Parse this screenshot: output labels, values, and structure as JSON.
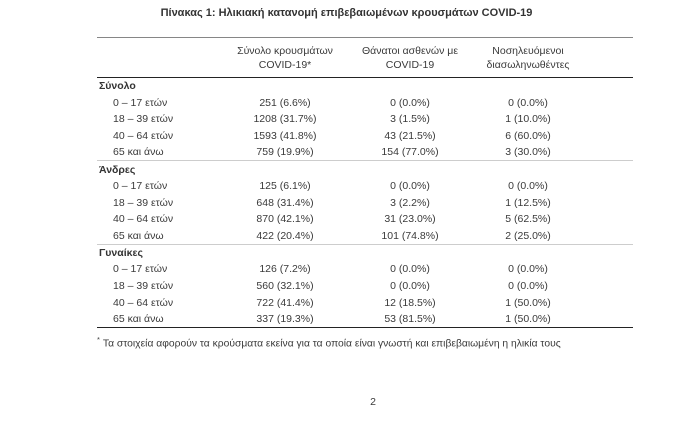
{
  "page": {
    "title": "Πίνακας 1: Ηλικιακή κατανομή επιβεβαιωμένων κρουσμάτων COVID-19",
    "footnote_marker": "*",
    "footnote_text": "Τα στοιχεία αφορούν τα κρούσματα εκείνα για τα οποία είναι γνωστή και επιβεβαιωμένη η ηλικία τους",
    "page_number": "2"
  },
  "colors": {
    "text": "#3a3a3a",
    "rule_top": "#868686",
    "rule_dark": "#232323",
    "rule_separator": "#cdcdcd",
    "background": "#ffffff"
  },
  "table": {
    "columns": [
      {
        "line1": "Σύνολο κρουσμάτων",
        "line2": "COVID-19*"
      },
      {
        "line1": "Θάνατοι ασθενών με",
        "line2": "COVID-19"
      },
      {
        "line1": "Νοσηλευόμενοι",
        "line2": "διασωληνωθέντες"
      }
    ],
    "sections": [
      {
        "label": "Σύνολο",
        "rows": [
          {
            "age": "0 – 17 ετών",
            "cases": "251 (6.6%)",
            "deaths": "0 (0.0%)",
            "intubated": "0 (0.0%)"
          },
          {
            "age": "18 – 39 ετών",
            "cases": "1208 (31.7%)",
            "deaths": "3 (1.5%)",
            "intubated": "1 (10.0%)"
          },
          {
            "age": "40 – 64 ετών",
            "cases": "1593 (41.8%)",
            "deaths": "43 (21.5%)",
            "intubated": "6 (60.0%)"
          },
          {
            "age": "65 και άνω",
            "cases": "759 (19.9%)",
            "deaths": "154 (77.0%)",
            "intubated": "3 (30.0%)"
          }
        ]
      },
      {
        "label": "Άνδρες",
        "rows": [
          {
            "age": "0 – 17 ετών",
            "cases": "125 (6.1%)",
            "deaths": "0 (0.0%)",
            "intubated": "0 (0.0%)"
          },
          {
            "age": "18 – 39 ετών",
            "cases": "648 (31.4%)",
            "deaths": "3 (2.2%)",
            "intubated": "1 (12.5%)"
          },
          {
            "age": "40 – 64 ετών",
            "cases": "870 (42.1%)",
            "deaths": "31 (23.0%)",
            "intubated": "5 (62.5%)"
          },
          {
            "age": "65 και άνω",
            "cases": "422 (20.4%)",
            "deaths": "101 (74.8%)",
            "intubated": "2 (25.0%)"
          }
        ]
      },
      {
        "label": "Γυναίκες",
        "rows": [
          {
            "age": "0 – 17 ετών",
            "cases": "126 (7.2%)",
            "deaths": "0 (0.0%)",
            "intubated": "0 (0.0%)"
          },
          {
            "age": "18 – 39 ετών",
            "cases": "560 (32.1%)",
            "deaths": "0 (0.0%)",
            "intubated": "0 (0.0%)"
          },
          {
            "age": "40 – 64 ετών",
            "cases": "722 (41.4%)",
            "deaths": "12 (18.5%)",
            "intubated": "1 (50.0%)"
          },
          {
            "age": "65 και άνω",
            "cases": "337 (19.3%)",
            "deaths": "53 (81.5%)",
            "intubated": "1 (50.0%)"
          }
        ]
      }
    ]
  }
}
